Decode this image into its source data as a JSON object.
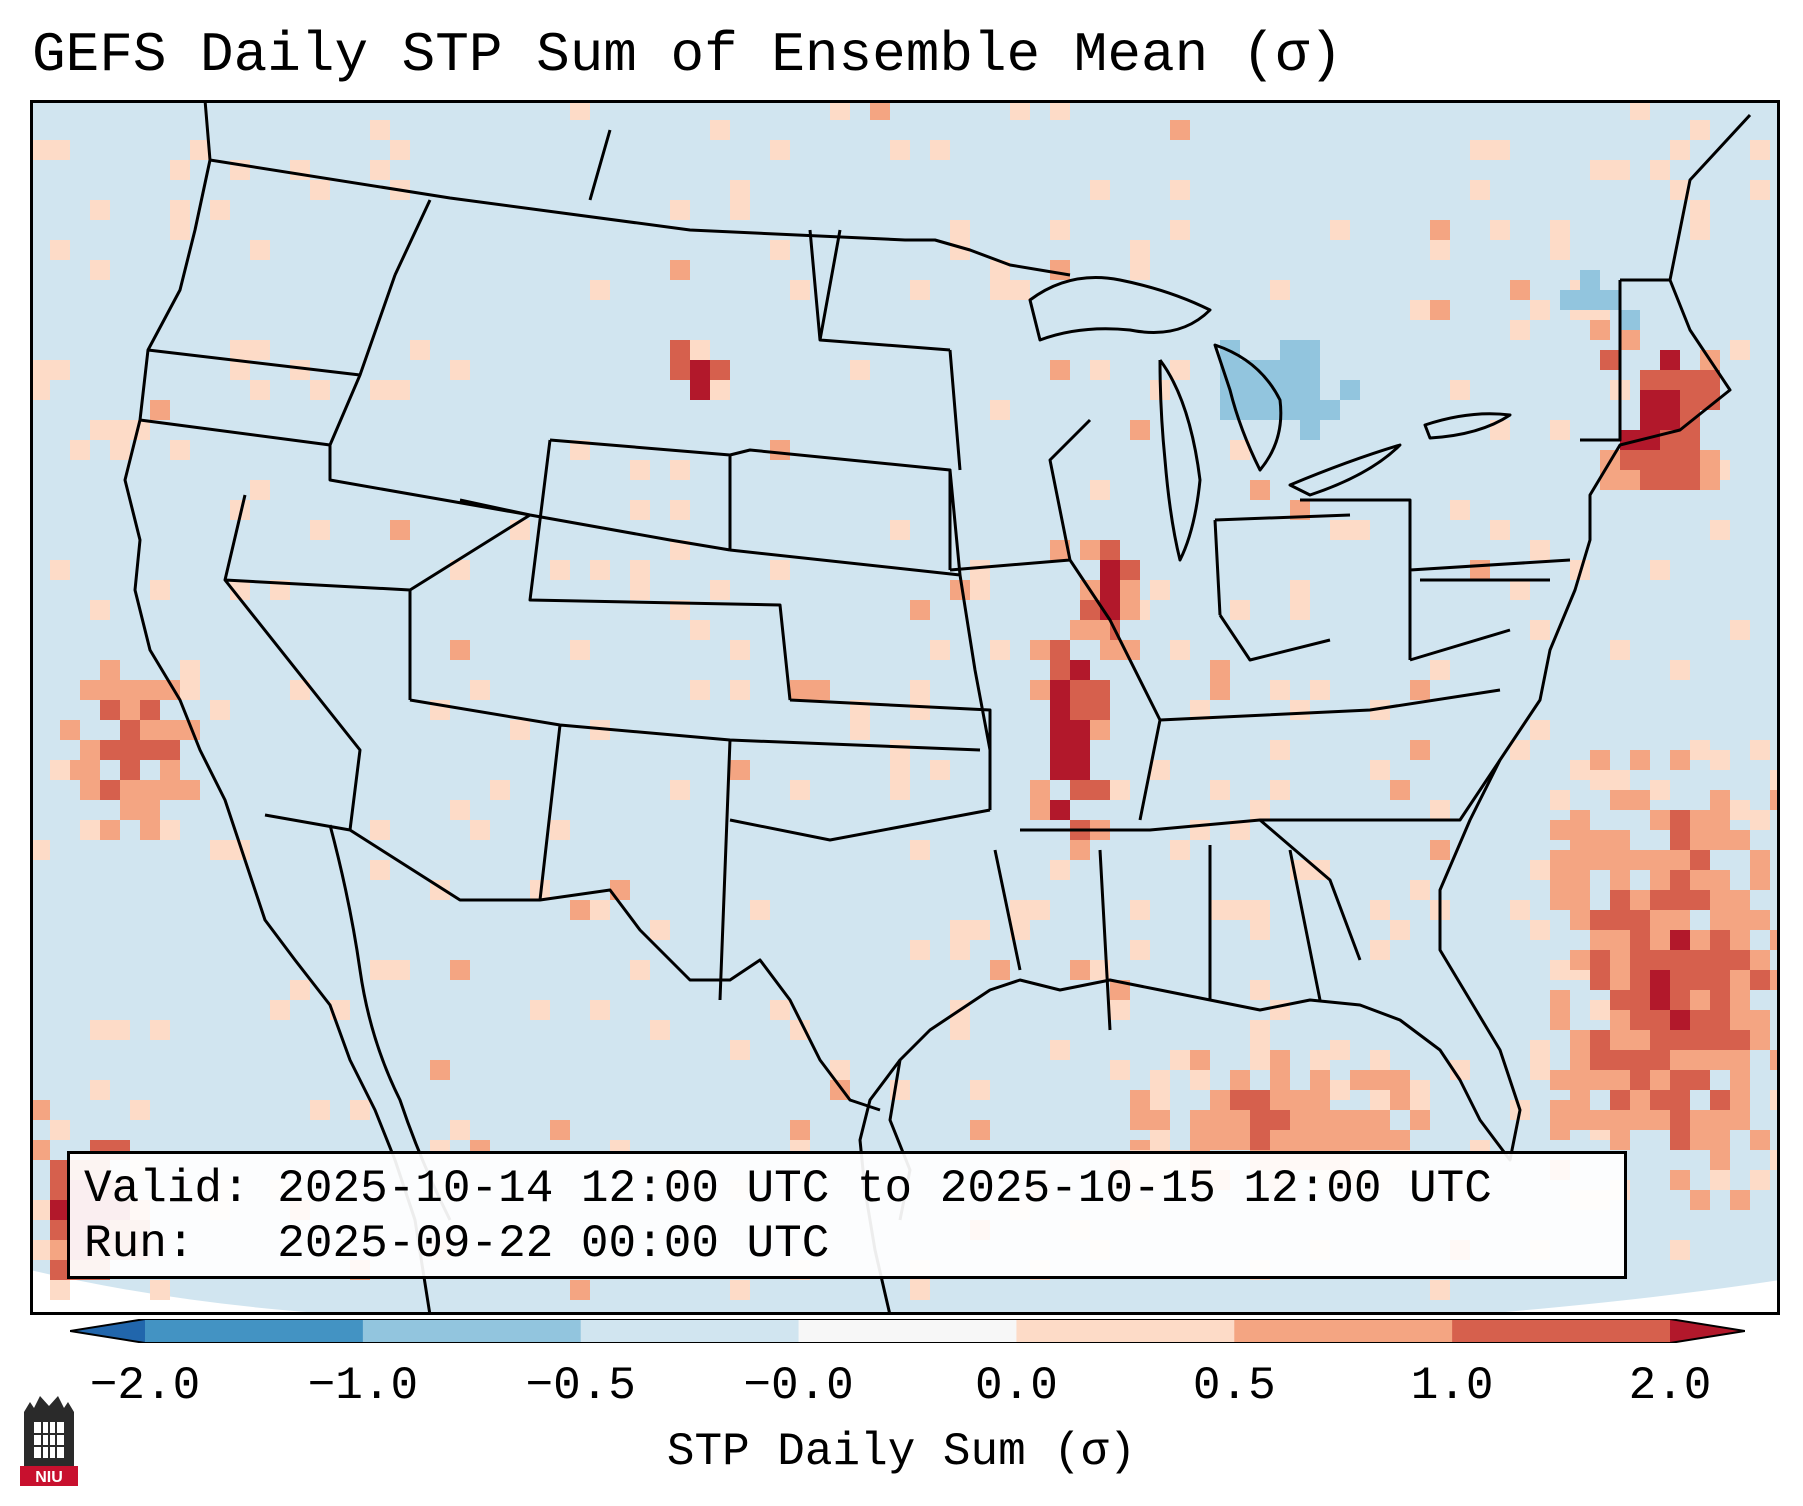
{
  "title": "GEFS Daily STP Sum of Ensemble Mean (σ)",
  "map": {
    "projection": "Lambert conformal, CONUS",
    "fields": "STP daily sum anomaly of ensemble mean",
    "colors": {
      "ocean": "#d1e5f0",
      "land": "#d1e5f0",
      "border": "#000000"
    },
    "anomaly_regions": [
      {
        "name": "upper-mississippi-valley",
        "value": 1.5
      },
      {
        "name": "iowa-missouri-corridor",
        "value": 1.8
      },
      {
        "name": "new-england",
        "value": 1.9
      },
      {
        "name": "western-atlantic",
        "value": 1.2
      },
      {
        "name": "gulf-of-mexico",
        "value": 0.9
      },
      {
        "name": "central-montana",
        "value": 1.9
      },
      {
        "name": "california-coast",
        "value": 1.1
      },
      {
        "name": "eastern-pacific",
        "value": 2.0
      },
      {
        "name": "great-lakes",
        "value": -0.6
      },
      {
        "name": "canadian-maritimes",
        "value": -0.7
      }
    ]
  },
  "info": {
    "valid_label": "Valid:",
    "valid_value": "2025-10-14 12:00 UTC to 2025-10-15 12:00 UTC",
    "run_label": "Run:",
    "run_value": "2025-09-22 00:00 UTC"
  },
  "colorbar": {
    "label": "STP Daily Sum (σ)",
    "ticks": [
      "−2.0",
      "−1.0",
      "−0.5",
      "−0.0",
      "0.0",
      "0.5",
      "1.0",
      "2.0"
    ],
    "colors": [
      "#4393c3",
      "#92c5de",
      "#d1e5f0",
      "#f7f7f7",
      "#fddbc7",
      "#f4a582",
      "#d6604d"
    ],
    "extend_low_color": "#2166ac",
    "extend_high_color": "#b2182b"
  },
  "logo": {
    "text": "NIU"
  }
}
